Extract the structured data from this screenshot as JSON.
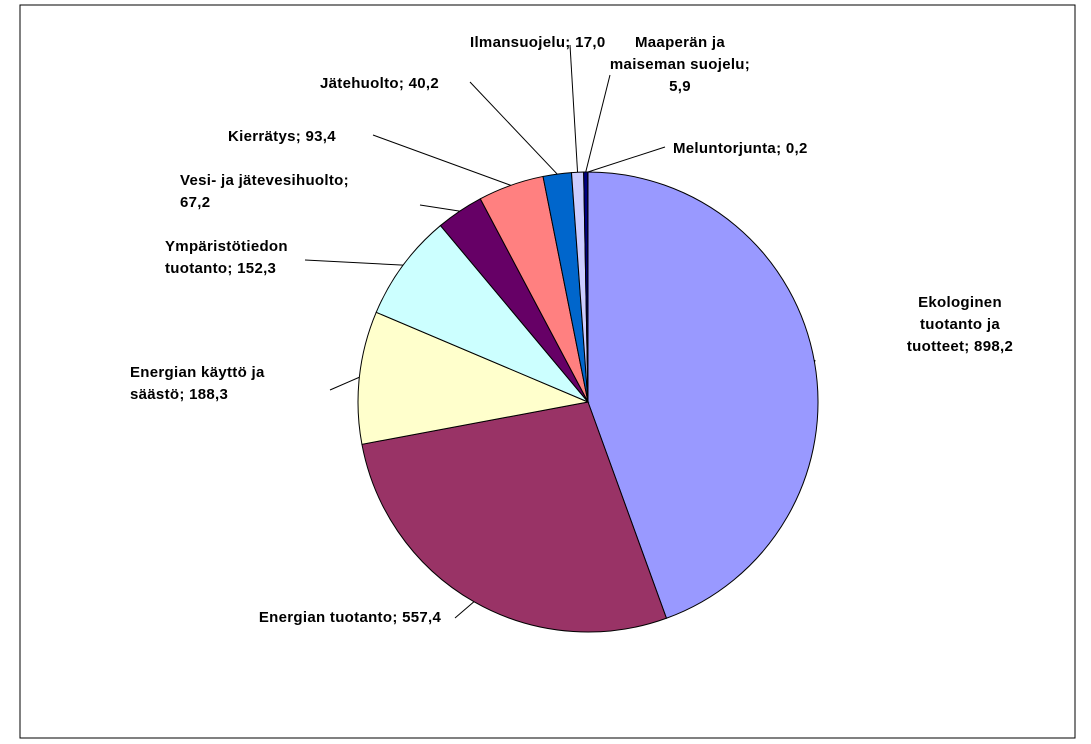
{
  "chart_data": {
    "type": "pie",
    "categories": [
      "Ekologinen tuotanto ja tuotteet",
      "Energian tuotanto",
      "Energian käyttö ja säästö",
      "Ympäristötiedon tuotanto",
      "Vesi- ja jätevesihuolto",
      "Kierrätys",
      "Jätehuolto",
      "Ilmansuojelu",
      "Maaperän ja maiseman suojelu",
      "Meluntorjunta"
    ],
    "values": [
      898.2,
      557.4,
      188.3,
      152.3,
      67.2,
      93.4,
      40.2,
      17,
      5.9,
      0.2
    ],
    "value_labels": [
      "898,2",
      "557,4",
      "188,3",
      "152,3",
      "67,2",
      "93,4",
      "40,2",
      "17,0",
      "5,9",
      "0,2"
    ],
    "label_separator": "; ",
    "colors": [
      "#9999ff",
      "#993366",
      "#ffffcc",
      "#ccffff",
      "#660066",
      "#ff8080",
      "#0066cc",
      "#ccccff",
      "#000080",
      "#ff00ff"
    ]
  }
}
